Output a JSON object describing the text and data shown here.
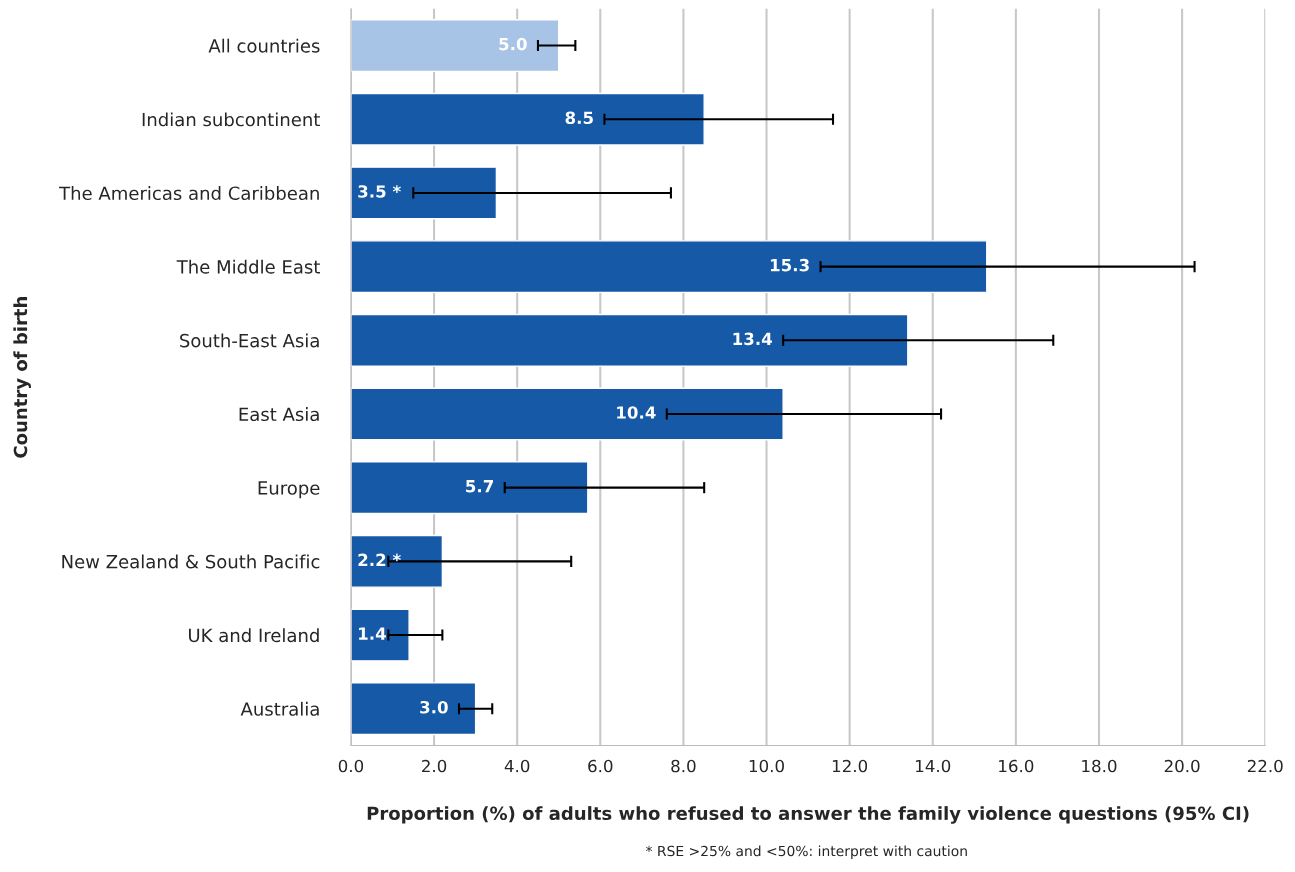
{
  "chart_data": {
    "type": "bar",
    "orientation": "horizontal",
    "categories": [
      "All countries",
      "Indian subcontinent",
      "The Americas and Caribbean",
      "The Middle East",
      "South-East Asia",
      "East Asia",
      "Europe",
      "New Zealand & South Pacific",
      "UK and Ireland",
      "Australia"
    ],
    "values": [
      5.0,
      8.5,
      3.5,
      15.3,
      13.4,
      10.4,
      5.7,
      2.2,
      1.4,
      3.0
    ],
    "colors": [
      "#a7c3e5",
      "#165aa7",
      "#165aa7",
      "#165aa7",
      "#165aa7",
      "#165aa7",
      "#165aa7",
      "#165aa7",
      "#165aa7",
      "#165aa7"
    ],
    "errors": [
      [
        4.5,
        5.4
      ],
      [
        6.1,
        11.6
      ],
      [
        1.5,
        7.7
      ],
      [
        11.3,
        20.3
      ],
      [
        10.4,
        16.9
      ],
      [
        7.6,
        14.2
      ],
      [
        3.7,
        8.5
      ],
      [
        0.9,
        5.3
      ],
      [
        0.9,
        2.2
      ],
      [
        2.6,
        3.4
      ]
    ],
    "value_labels": [
      "5.0",
      "8.5",
      "3.5 *",
      "15.3",
      "13.4",
      "10.4",
      "5.7",
      "2.2 *",
      "1.4",
      "3.0"
    ],
    "xlim": [
      0,
      22
    ],
    "xticks": [
      {
        "value": 0,
        "label": "0.0"
      },
      {
        "value": 2,
        "label": "2.0"
      },
      {
        "value": 4,
        "label": "4.0"
      },
      {
        "value": 6,
        "label": "6.0"
      },
      {
        "value": 8,
        "label": "8.0"
      },
      {
        "value": 10,
        "label": "10.0"
      },
      {
        "value": 12,
        "label": "12.0"
      },
      {
        "value": 14,
        "label": "14.0"
      },
      {
        "value": 16,
        "label": "16.0"
      },
      {
        "value": 18,
        "label": "18.0"
      },
      {
        "value": 20,
        "label": "20.0"
      },
      {
        "value": 22,
        "label": "22.0"
      }
    ],
    "xlabel": "Proportion (%) of adults who refused to answer the family violence questions (95% CI)",
    "ylabel": "Country of birth",
    "annotations": [
      "* RSE >25% and <50%: interpret with caution"
    ],
    "grid": "x",
    "legend": false
  }
}
